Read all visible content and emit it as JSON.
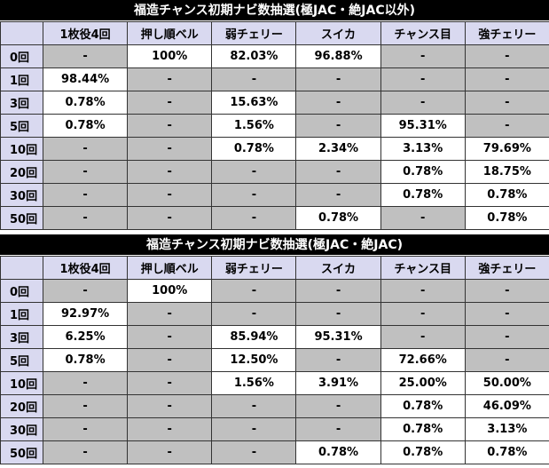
{
  "tables": [
    {
      "title": "福造チャンス初期ナビ数抽選(極JAC・絶JAC以外)",
      "headers": [
        "",
        "1枚役4回",
        "押し順ベル",
        "弱チェリー",
        "スイカ",
        "チャンス目",
        "強チェリー"
      ],
      "rows": [
        {
          "label": "0回",
          "cells": [
            "-",
            "100%",
            "82.03%",
            "96.88%",
            "-",
            "-"
          ]
        },
        {
          "label": "1回",
          "cells": [
            "98.44%",
            "-",
            "-",
            "-",
            "-",
            "-"
          ]
        },
        {
          "label": "3回",
          "cells": [
            "0.78%",
            "-",
            "15.63%",
            "-",
            "-",
            "-"
          ]
        },
        {
          "label": "5回",
          "cells": [
            "0.78%",
            "-",
            "1.56%",
            "-",
            "95.31%",
            "-"
          ]
        },
        {
          "label": "10回",
          "cells": [
            "-",
            "-",
            "0.78%",
            "2.34%",
            "3.13%",
            "79.69%"
          ]
        },
        {
          "label": "20回",
          "cells": [
            "-",
            "-",
            "-",
            "-",
            "0.78%",
            "18.75%"
          ]
        },
        {
          "label": "30回",
          "cells": [
            "-",
            "-",
            "-",
            "-",
            "0.78%",
            "0.78%"
          ]
        },
        {
          "label": "50回",
          "cells": [
            "-",
            "-",
            "-",
            "0.78%",
            "-",
            "0.78%"
          ]
        }
      ]
    },
    {
      "title": "福造チャンス初期ナビ数抽選(極JAC・絶JAC)",
      "headers": [
        "",
        "1枚役4回",
        "押し順ベル",
        "弱チェリー",
        "スイカ",
        "チャンス目",
        "強チェリー"
      ],
      "rows": [
        {
          "label": "0回",
          "cells": [
            "-",
            "100%",
            "-",
            "-",
            "-",
            "-"
          ]
        },
        {
          "label": "1回",
          "cells": [
            "92.97%",
            "-",
            "-",
            "-",
            "-",
            "-"
          ]
        },
        {
          "label": "3回",
          "cells": [
            "6.25%",
            "-",
            "85.94%",
            "95.31%",
            "-",
            "-"
          ]
        },
        {
          "label": "5回",
          "cells": [
            "0.78%",
            "-",
            "12.50%",
            "-",
            "72.66%",
            "-"
          ]
        },
        {
          "label": "10回",
          "cells": [
            "-",
            "-",
            "1.56%",
            "3.91%",
            "25.00%",
            "50.00%"
          ]
        },
        {
          "label": "20回",
          "cells": [
            "-",
            "-",
            "-",
            "-",
            "0.78%",
            "46.09%"
          ]
        },
        {
          "label": "30回",
          "cells": [
            "-",
            "-",
            "-",
            "-",
            "0.78%",
            "3.13%"
          ]
        },
        {
          "label": "50回",
          "cells": [
            "-",
            "-",
            "-",
            "0.78%",
            "0.78%",
            "0.78%"
          ]
        }
      ]
    }
  ],
  "colors": {
    "title_bg": "#000000",
    "header_bg": "#d9d9f0",
    "empty_bg": "#c0c0c0",
    "value_bg": "#ffffff"
  }
}
